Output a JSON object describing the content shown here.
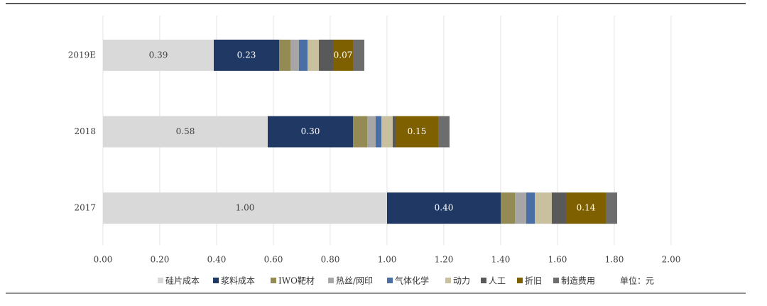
{
  "chart_data": {
    "type": "stacked-bar-horizontal",
    "categories": [
      "2019E",
      "2018",
      "2017"
    ],
    "series": [
      {
        "name": "硅片成本",
        "color": "#d9d9d9",
        "values": [
          0.39,
          0.58,
          1
        ],
        "value_labels": [
          "0.39",
          "0.58",
          "1.00"
        ]
      },
      {
        "name": "浆料成本",
        "color": "#1f3864",
        "values": [
          0.23,
          0.3,
          0.4
        ],
        "value_labels": [
          "0.23",
          "0.30",
          "0.40"
        ]
      },
      {
        "name": "IWO靶材",
        "color": "#948a54",
        "values": [
          0.04,
          0.05,
          0.05
        ]
      },
      {
        "name": "热丝/网印",
        "color": "#a6a6a6",
        "values": [
          0.03,
          0.03,
          0.04
        ]
      },
      {
        "name": "气体化学",
        "color": "#4a6fa5",
        "values": [
          0.03,
          0.02,
          0.03
        ]
      },
      {
        "name": "动力",
        "color": "#c9c0a0",
        "values": [
          0.04,
          0.04,
          0.06
        ]
      },
      {
        "name": "人工",
        "color": "#595959",
        "values": [
          0.05,
          0.01,
          0.05
        ]
      },
      {
        "name": "折旧",
        "color": "#7f6000",
        "values": [
          0.07,
          0.15,
          0.14
        ],
        "value_labels": [
          "0.07",
          "0.15",
          "0.14"
        ]
      },
      {
        "name": "制造费用",
        "color": "#6d6d6d",
        "values": [
          0.04,
          0.04,
          0.04
        ]
      }
    ],
    "note": "单位：元",
    "xlim": [
      0,
      2
    ],
    "xticks": [
      {
        "value": 0,
        "label": "0.00"
      },
      {
        "value": 0.2,
        "label": "0.20"
      },
      {
        "value": 0.4,
        "label": "0.40"
      },
      {
        "value": 0.6,
        "label": "0.60"
      },
      {
        "value": 0.8,
        "label": "0.80"
      },
      {
        "value": 1,
        "label": "1.00"
      },
      {
        "value": 1.2,
        "label": "1.20"
      },
      {
        "value": 1.4,
        "label": "1.40"
      },
      {
        "value": 1.6,
        "label": "1.60"
      },
      {
        "value": 1.8,
        "label": "1.80"
      },
      {
        "value": 2,
        "label": "2.00"
      }
    ],
    "grid": true
  }
}
